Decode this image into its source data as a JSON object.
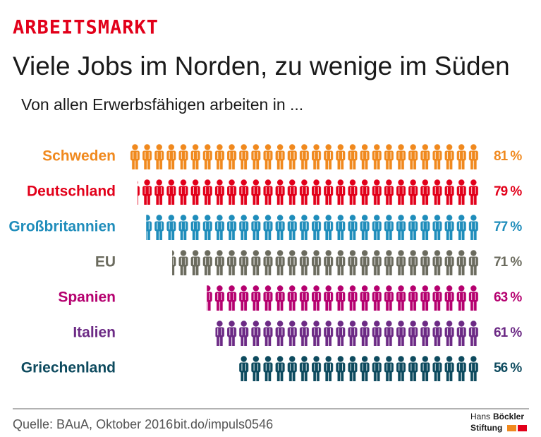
{
  "chart_data": {
    "type": "pictogram",
    "kicker": "ARBEITSMARKT",
    "title": "Viele Jobs im Norden, zu wenige im Süden",
    "subtitle": "Von allen Erwerbsfähigen arbeiten in ...",
    "categories": [
      "Schweden",
      "Deutschland",
      "Großbritannien",
      "EU",
      "Spanien",
      "Italien",
      "Griechenland"
    ],
    "values": [
      81,
      79,
      77,
      71,
      63,
      61,
      56
    ],
    "value_labels": [
      "81 %",
      "79 %",
      "77 %",
      "71 %",
      "63 %",
      "61 %",
      "56 %"
    ],
    "colors": [
      "#f0891e",
      "#e2001a",
      "#1f8dbb",
      "#6b6b5e",
      "#b5006f",
      "#6c2a85",
      "#0d4a5e"
    ],
    "source": "Quelle: BAuA, Oktober 2016",
    "link": "bit.do/impuls0546",
    "logo": [
      "Hans",
      "Böckler",
      "Stiftung"
    ]
  }
}
